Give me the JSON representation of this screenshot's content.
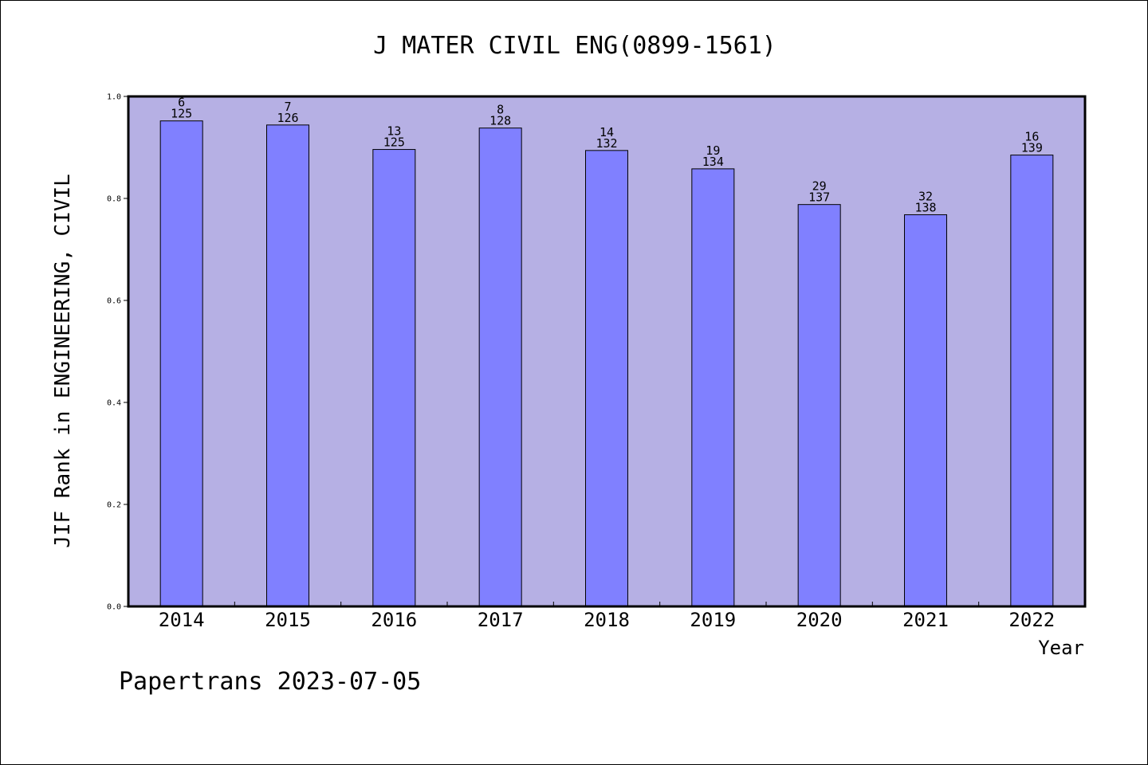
{
  "chart_data": {
    "type": "bar",
    "title": "J MATER CIVIL ENG(0899-1561)",
    "xlabel": "Year",
    "ylabel": "JIF Rank in ENGINEERING, CIVIL",
    "ylim": [
      0,
      1.0
    ],
    "yticks": [
      "0.0",
      "0.2",
      "0.4",
      "0.6",
      "0.8",
      "1.0"
    ],
    "categories": [
      "2014",
      "2015",
      "2016",
      "2017",
      "2018",
      "2019",
      "2020",
      "2021",
      "2022"
    ],
    "values": [
      0.952,
      0.944,
      0.896,
      0.938,
      0.894,
      0.858,
      0.788,
      0.768,
      0.885
    ],
    "labels": [
      {
        "rank": "6",
        "total": "125"
      },
      {
        "rank": "7",
        "total": "126"
      },
      {
        "rank": "13",
        "total": "125"
      },
      {
        "rank": "8",
        "total": "128"
      },
      {
        "rank": "14",
        "total": "132"
      },
      {
        "rank": "19",
        "total": "134"
      },
      {
        "rank": "29",
        "total": "137"
      },
      {
        "rank": "32",
        "total": "138"
      },
      {
        "rank": "16",
        "total": "139"
      }
    ],
    "grid": false,
    "colors": {
      "plot_background": "#b6b0e4",
      "bar_fill": "#8080ff",
      "bar_stroke": "#000000",
      "axis": "#000000"
    }
  },
  "footer": {
    "watermark": "Papertrans 2023-07-05"
  }
}
